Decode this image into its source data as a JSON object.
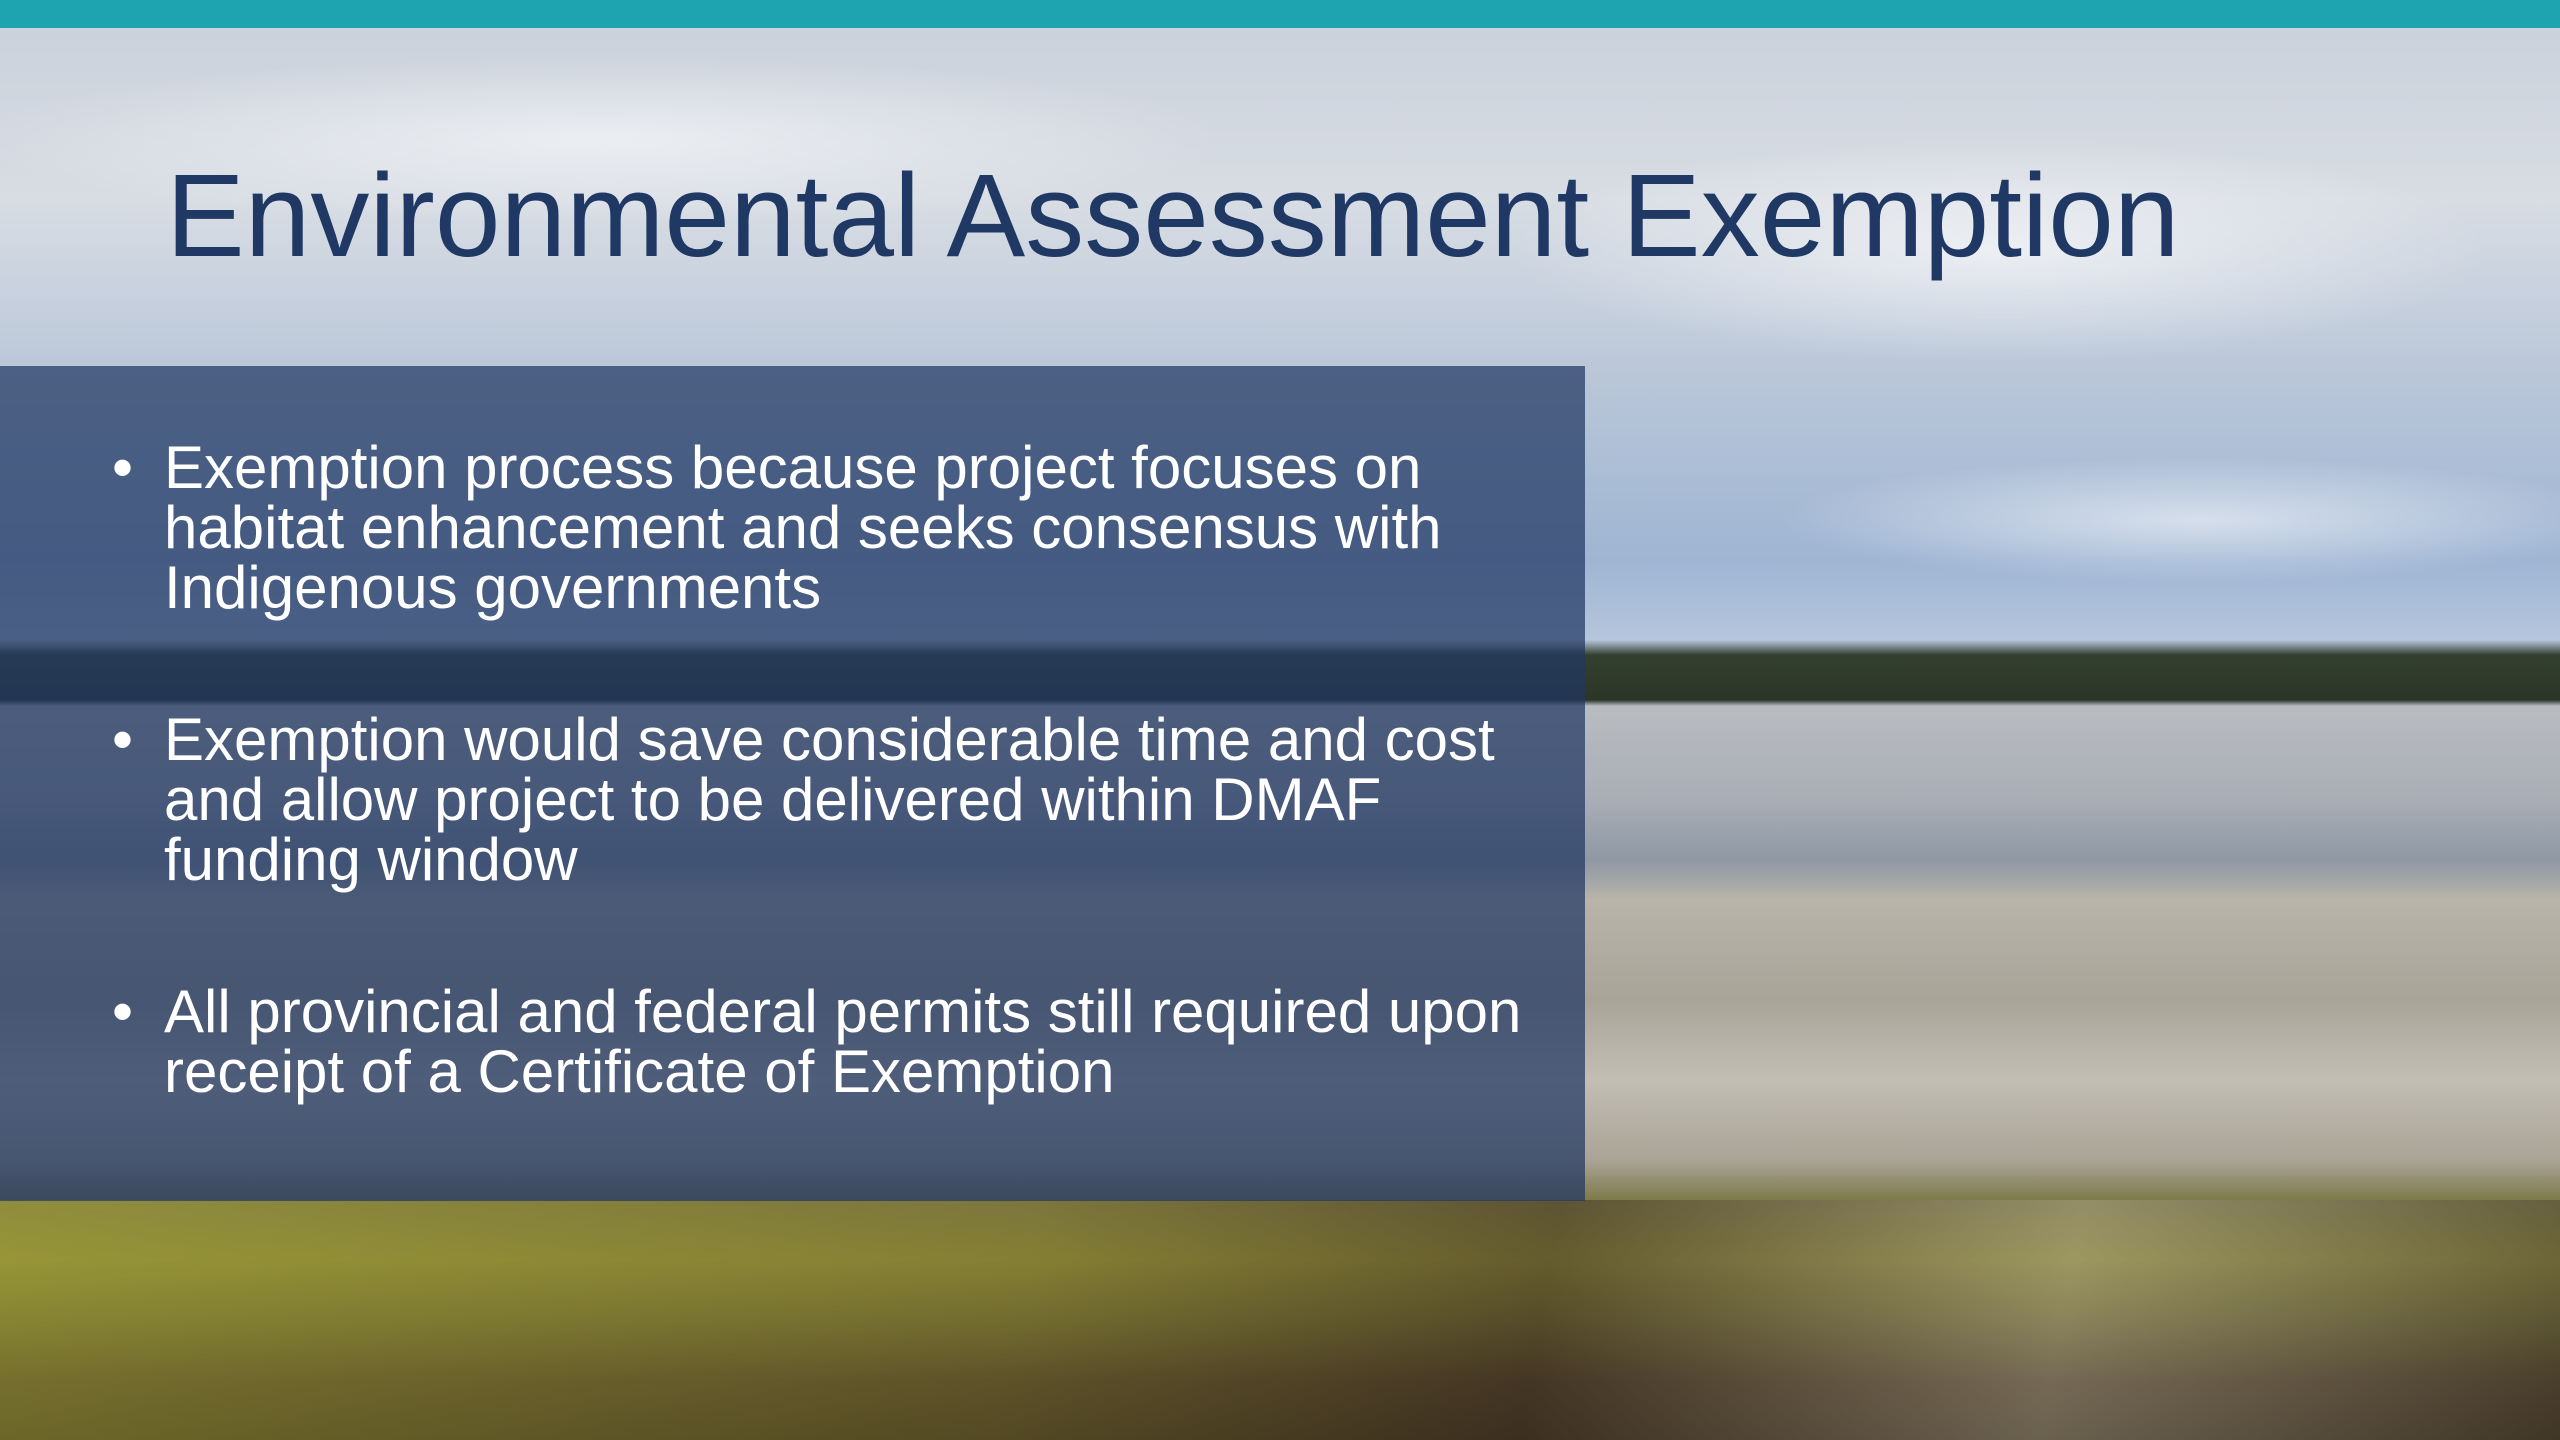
{
  "title": "Environmental Assessment Exemption",
  "bullets": [
    "Exemption process because project focuses on habitat enhancement and seeks consensus with Indigenous governments",
    "Exemption would save considerable time and cost and allow project to be delivered within DMAF funding window",
    "All provincial and federal permits still required upon receipt of a Certificate of Exemption"
  ]
}
